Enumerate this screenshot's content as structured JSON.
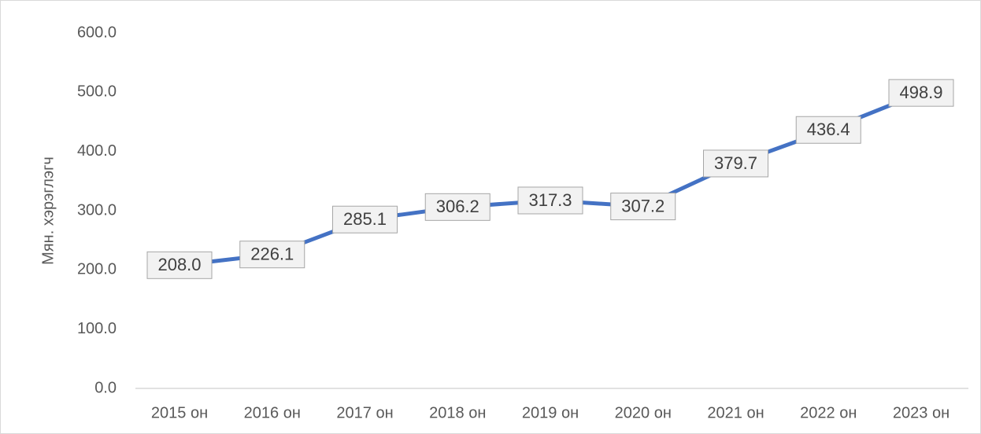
{
  "chart_data": {
    "type": "line",
    "y_label": "Мян. хэрэглэгч",
    "categories": [
      "2015 он",
      "2016 он",
      "2017 он",
      "2018 он",
      "2019 он",
      "2020 он",
      "2021 он",
      "2022 он",
      "2023 он"
    ],
    "series": [
      {
        "name": "Мян. хэрэглэгч",
        "color": "#4472c4",
        "values": [
          208.0,
          226.1,
          285.1,
          306.2,
          317.3,
          307.2,
          379.7,
          436.4,
          498.9
        ],
        "value_labels": [
          "208.0",
          "226.1",
          "285.1",
          "306.2",
          "317.3",
          "307.2",
          "379.7",
          "436.4",
          "498.9"
        ]
      }
    ],
    "ylim": [
      0,
      600
    ],
    "yticks": [
      {
        "value": 0,
        "label": "0.0"
      },
      {
        "value": 100,
        "label": "100.0"
      },
      {
        "value": 200,
        "label": "200.0"
      },
      {
        "value": 300,
        "label": "300.0"
      },
      {
        "value": 400,
        "label": "400.0"
      },
      {
        "value": 500,
        "label": "500.0"
      },
      {
        "value": 600,
        "label": "600.0"
      }
    ],
    "grid": false
  }
}
